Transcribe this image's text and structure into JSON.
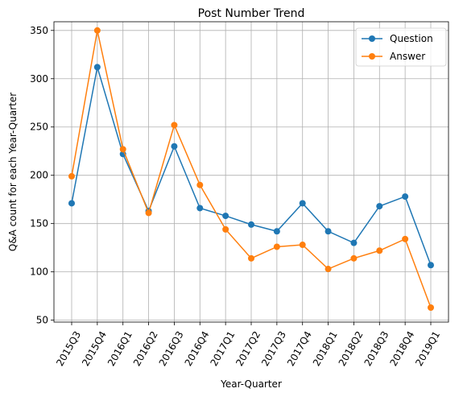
{
  "chart_data": {
    "type": "line",
    "title": "Post Number Trend",
    "xlabel": "Year-Quarter",
    "ylabel": "Q&A count for each Year-Quarter",
    "categories": [
      "2015Q3",
      "2015Q4",
      "2016Q1",
      "2016Q2",
      "2016Q3",
      "2016Q4",
      "2017Q1",
      "2017Q2",
      "2017Q3",
      "2017Q4",
      "2018Q1",
      "2018Q2",
      "2018Q3",
      "2018Q4",
      "2019Q1"
    ],
    "series": [
      {
        "name": "Question",
        "color": "#1f77b4",
        "values": [
          171,
          312,
          222,
          163,
          230,
          166,
          158,
          149,
          142,
          171,
          142,
          130,
          168,
          178,
          107
        ]
      },
      {
        "name": "Answer",
        "color": "#ff7f0e",
        "values": [
          199,
          350,
          227,
          161,
          252,
          190,
          144,
          114,
          126,
          128,
          103,
          114,
          122,
          134,
          63
        ]
      }
    ],
    "ylim": [
      48,
      359
    ],
    "yticks": [
      50,
      100,
      150,
      200,
      250,
      300,
      350
    ],
    "grid": true,
    "legend_position": "top-right"
  }
}
